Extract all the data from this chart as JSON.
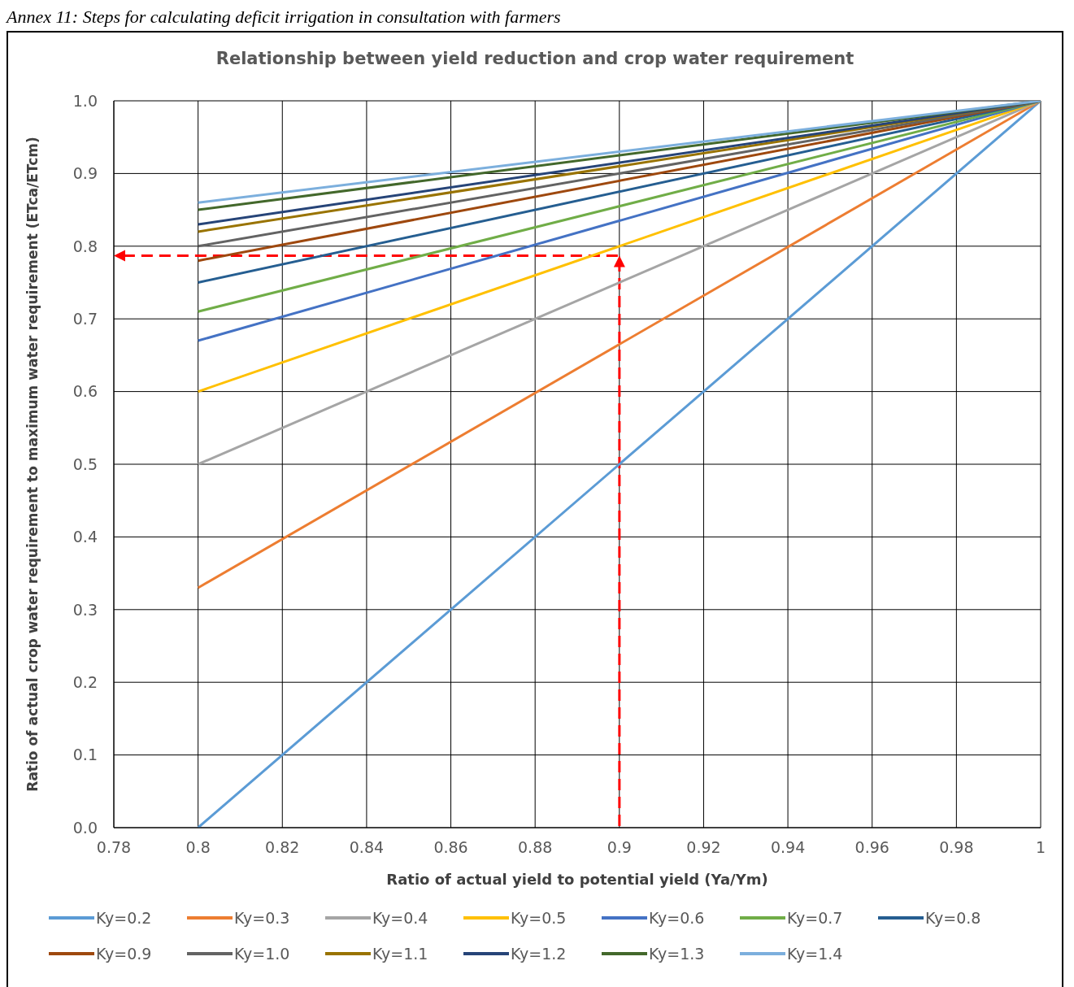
{
  "chart_data": {
    "type": "line",
    "title": "Relationship between yield reduction and crop water requirement",
    "xlabel": "Ratio of actual yield to potential yield (Ya/Ym)",
    "ylabel": "Ratio of actual crop water requirement to maximum water requirement (ETca/ETcm)",
    "annotations": [
      "Annex 11: Steps for calculating deficit irrigation in consultation with farmers"
    ],
    "x": [
      0.8,
      1
    ],
    "series": [
      {
        "name": "Ky=0.2",
        "color": "#5b9bd5",
        "values": [
          0,
          1
        ]
      },
      {
        "name": "Ky=0.3",
        "color": "#ed7d31",
        "values": [
          0.33,
          1
        ]
      },
      {
        "name": "Ky=0.4",
        "color": "#a5a5a5",
        "values": [
          0.5,
          1
        ]
      },
      {
        "name": "Ky=0.5",
        "color": "#ffc000",
        "values": [
          0.6,
          1
        ]
      },
      {
        "name": "Ky=0.6",
        "color": "#4472c4",
        "values": [
          0.67,
          1
        ]
      },
      {
        "name": "Ky=0.7",
        "color": "#70ad47",
        "values": [
          0.71,
          1
        ]
      },
      {
        "name": "Ky=0.8",
        "color": "#255e91",
        "values": [
          0.75,
          1
        ]
      },
      {
        "name": "Ky=0.9",
        "color": "#9e480e",
        "values": [
          0.78,
          1
        ]
      },
      {
        "name": "Ky=1.0",
        "color": "#636363",
        "values": [
          0.8,
          1
        ]
      },
      {
        "name": "Ky=1.1",
        "color": "#997300",
        "values": [
          0.82,
          1
        ]
      },
      {
        "name": "Ky=1.2",
        "color": "#264478",
        "values": [
          0.83,
          1
        ]
      },
      {
        "name": "Ky=1.3",
        "color": "#43682b",
        "values": [
          0.85,
          1
        ]
      },
      {
        "name": "Ky=1.4",
        "color": "#7cafdd",
        "values": [
          0.86,
          1
        ]
      }
    ],
    "xlim": [
      0.78,
      1
    ],
    "xticks": [
      0.78,
      0.8,
      0.82,
      0.84,
      0.86,
      0.88,
      0.9,
      0.92,
      0.94,
      0.96,
      0.98,
      1
    ],
    "ylim": [
      0,
      1
    ],
    "yticks": [
      {
        "value": 0,
        "label": "0.0"
      },
      {
        "value": 0.1,
        "label": "0.1"
      },
      {
        "value": 0.2,
        "label": "0.2"
      },
      {
        "value": 0.3,
        "label": "0.3"
      },
      {
        "value": 0.4,
        "label": "0.4"
      },
      {
        "value": 0.5,
        "label": "0.5"
      },
      {
        "value": 0.6,
        "label": "0.6"
      },
      {
        "value": 0.7,
        "label": "0.7"
      },
      {
        "value": 0.8,
        "label": "0.8"
      },
      {
        "value": 0.9,
        "label": "0.9"
      },
      {
        "value": 1,
        "label": "1.0"
      }
    ],
    "grid": true,
    "legend": "bottom",
    "marker": "none",
    "line_style": "solid"
  }
}
